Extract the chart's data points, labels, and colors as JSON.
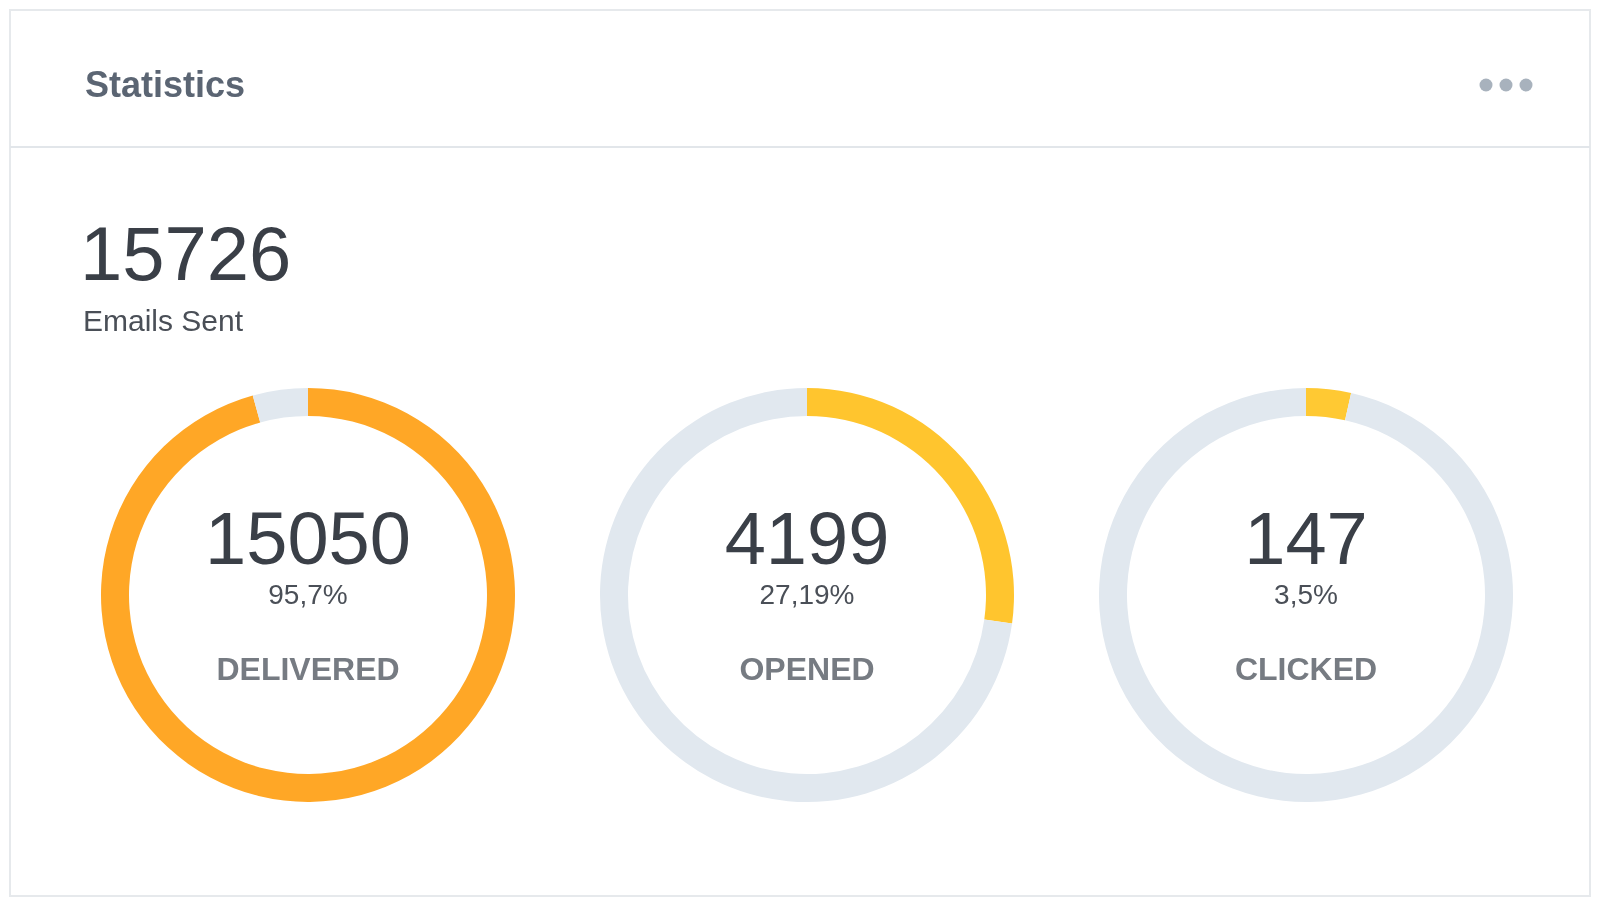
{
  "chart_data": [
    {
      "type": "other",
      "title": "Statistics",
      "annotations": [
        "15726",
        "Emails Sent"
      ]
    },
    {
      "type": "donut",
      "title": "DELIVERED",
      "categories": [
        null,
        null
      ],
      "values": [
        95.7,
        4.3
      ],
      "colors": [
        "#ffa726",
        "#e1e8ef"
      ],
      "value_labels": [
        "95,7%",
        null
      ],
      "annotations": [
        "15050"
      ]
    },
    {
      "type": "donut",
      "title": "OPENED",
      "categories": [
        null,
        null
      ],
      "values": [
        27.19,
        72.81
      ],
      "colors": [
        "#ffc52e",
        "#e1e8ef"
      ],
      "value_labels": [
        "27,19%",
        null
      ],
      "annotations": [
        "4199"
      ]
    },
    {
      "type": "donut",
      "title": "CLICKED",
      "categories": [
        null,
        null
      ],
      "values": [
        3.5,
        96.5
      ],
      "colors": [
        "#ffc933",
        "#e1e8ef"
      ],
      "value_labels": [
        "3,5%",
        null
      ],
      "annotations": [
        "147"
      ]
    }
  ]
}
